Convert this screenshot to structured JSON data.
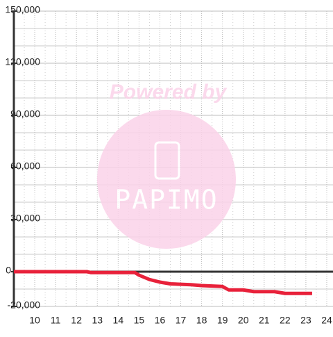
{
  "chart_data": {
    "type": "line",
    "watermark": {
      "top": "Powered by",
      "logo": "PAPIMO"
    },
    "x": [
      9,
      12.5,
      12.7,
      14.8,
      15,
      15.5,
      16,
      16.5,
      17.5,
      18,
      19,
      19.3,
      20,
      20.5,
      21.5,
      22,
      23.3
    ],
    "series": [
      {
        "color": "#e8213a",
        "values": [
          0,
          0,
          -500,
          -500,
          -2000,
          -4500,
          -6000,
          -7000,
          -7500,
          -8000,
          -8500,
          -10500,
          -10500,
          -11500,
          -11500,
          -12500,
          -12500
        ]
      }
    ],
    "xlim": [
      9,
      24.3
    ],
    "xticks": [
      10,
      11,
      12,
      13,
      14,
      15,
      16,
      17,
      18,
      19,
      20,
      21,
      22,
      23,
      24
    ],
    "x_minor_ticks": [
      9.5,
      10.5,
      11.5,
      12.5,
      13.5,
      14.5,
      15.5,
      16.5,
      17.5,
      18.5,
      19.5,
      20.5,
      21.5,
      22.5,
      23.5
    ],
    "ylim": [
      -20000,
      150000
    ],
    "yticks": [
      {
        "value": -20000,
        "label": "-20,000"
      },
      0,
      {
        "value": 30000,
        "label": "30,000"
      },
      {
        "value": 60000,
        "label": "60,000"
      },
      {
        "value": 90000,
        "label": "90,000"
      },
      {
        "value": 120000,
        "label": "120,000"
      },
      {
        "value": 150000,
        "label": "150,000"
      }
    ],
    "y_minor_ticks": [
      -10000,
      10000,
      20000,
      40000,
      50000,
      70000,
      80000,
      100000,
      110000,
      130000,
      140000
    ],
    "grid": true
  }
}
